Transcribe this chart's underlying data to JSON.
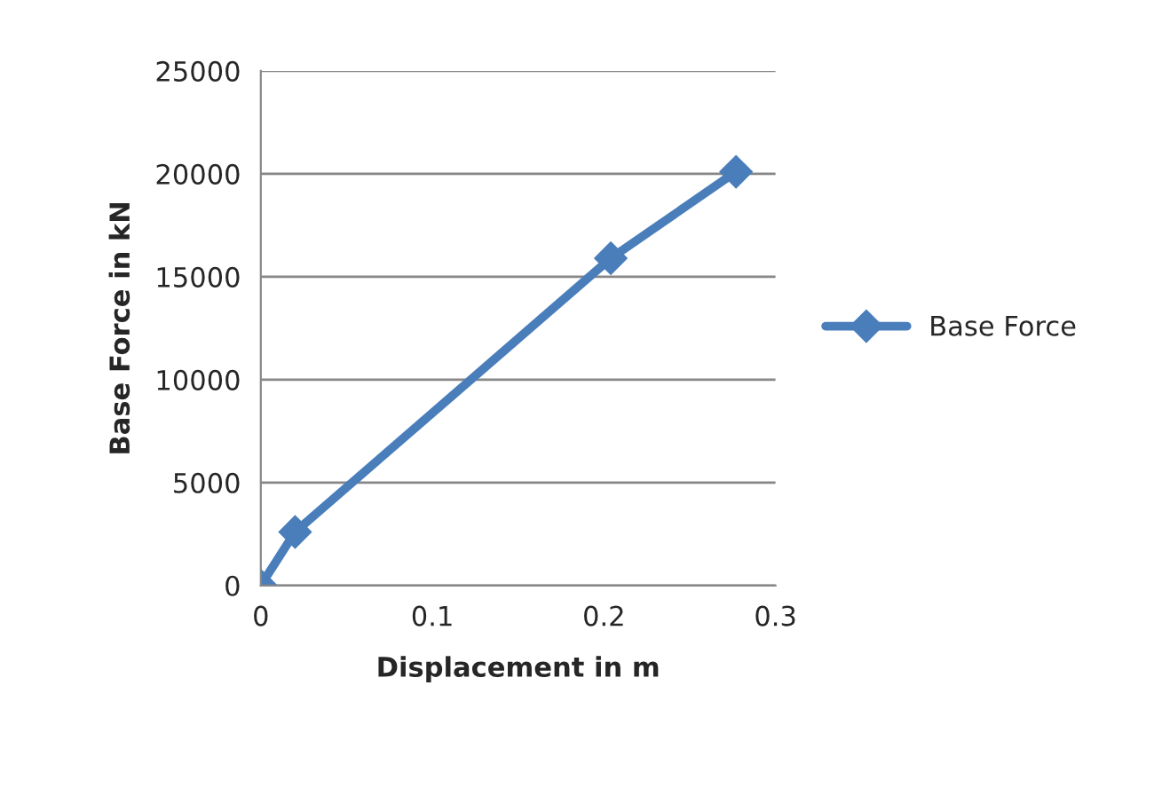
{
  "chart_data": {
    "type": "line",
    "xlabel": "Displacement in m",
    "ylabel": "Base Force in kN",
    "series": [
      {
        "name": "Base Force",
        "color": "#4a7ebb",
        "x": [
          0,
          0.02,
          0.204,
          0.277
        ],
        "values": [
          0,
          2600,
          15900,
          20100
        ]
      }
    ],
    "xlim": [
      0,
      0.3
    ],
    "xticks": [
      0,
      0.1,
      0.2,
      0.3
    ],
    "ylim": [
      0,
      25000
    ],
    "yticks": [
      0,
      5000,
      10000,
      15000,
      20000,
      25000
    ],
    "grid": "y",
    "legend": "right",
    "marker": "diamond",
    "line_style": "solid"
  }
}
